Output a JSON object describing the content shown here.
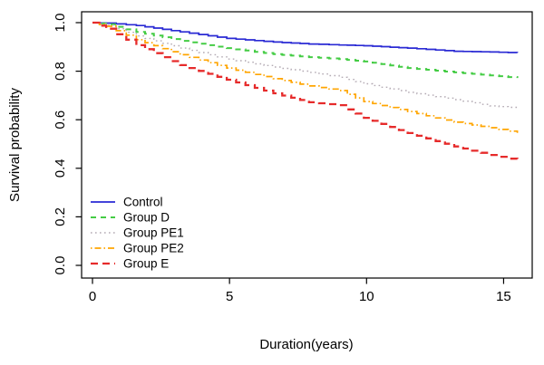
{
  "figure": {
    "background": "#ffffff",
    "border_color": "#000000"
  },
  "chart_data": {
    "type": "line",
    "subtype": "kaplan-meier-step",
    "title": "",
    "xlabel": "Duration(years)",
    "ylabel": "Survival probability",
    "xlim": [
      -0.5,
      16.1
    ],
    "ylim": [
      -0.04,
      1.04
    ],
    "x_ticks": [
      0,
      5,
      10,
      15
    ],
    "y_ticks": [
      "0.0",
      "0.2",
      "0.4",
      "0.6",
      "0.8",
      "1.0"
    ],
    "grid": false,
    "legend_position": "inside-bottom-left",
    "x": [
      0,
      0.5,
      1.6,
      3.2,
      4.9,
      6.6,
      7.9,
      9.0,
      9.9,
      11.5,
      13.2,
      14.5,
      15.5
    ],
    "series": [
      {
        "name": "Control",
        "color": "#2a2ad4",
        "style": "solid",
        "values": [
          1.0,
          0.998,
          0.988,
          0.962,
          0.935,
          0.92,
          0.912,
          0.908,
          0.905,
          0.895,
          0.882,
          0.879,
          0.876
        ]
      },
      {
        "name": "Group D",
        "color": "#44cc44",
        "style": "dashed",
        "values": [
          1.0,
          0.993,
          0.962,
          0.925,
          0.895,
          0.87,
          0.858,
          0.85,
          0.84,
          0.813,
          0.795,
          0.783,
          0.772
        ]
      },
      {
        "name": "Group PE1",
        "color": "#b3aab3",
        "style": "dotted",
        "values": [
          1.0,
          0.99,
          0.945,
          0.895,
          0.85,
          0.817,
          0.795,
          0.775,
          0.748,
          0.713,
          0.683,
          0.657,
          0.648
        ]
      },
      {
        "name": "Group PE2",
        "color": "#ffa500",
        "style": "dashdot",
        "values": [
          1.0,
          0.985,
          0.93,
          0.868,
          0.813,
          0.769,
          0.739,
          0.72,
          0.675,
          0.634,
          0.59,
          0.567,
          0.546
        ]
      },
      {
        "name": "Group E",
        "color": "#e62b2b",
        "style": "longdash",
        "values": [
          1.0,
          0.975,
          0.907,
          0.825,
          0.765,
          0.709,
          0.672,
          0.66,
          0.608,
          0.545,
          0.49,
          0.455,
          0.432
        ]
      }
    ]
  }
}
